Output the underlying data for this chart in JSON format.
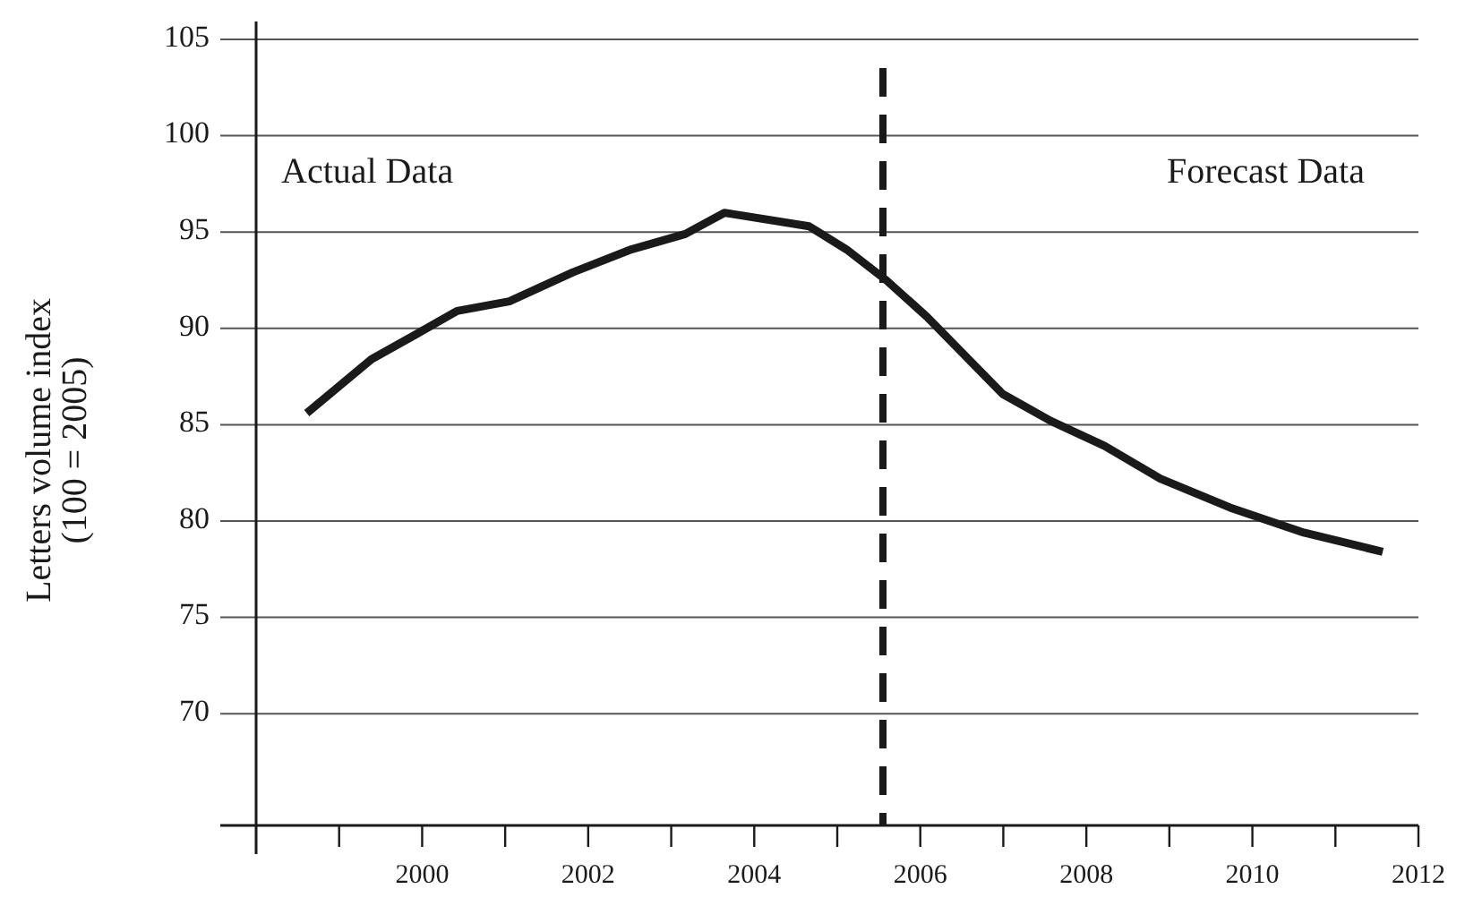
{
  "chart_data": {
    "type": "line",
    "ylabel": "Letters volume index\n(100 = 2005)",
    "x": [
      1998.61,
      1999.39,
      1999.93,
      2000.42,
      2001.05,
      2001.81,
      2002.52,
      2003.17,
      2003.64,
      2004.66,
      2005.11,
      2005.59,
      2006.08,
      2006.99,
      2007.57,
      2008.22,
      2008.89,
      2009.73,
      2010.62,
      2011.57
    ],
    "series": [
      {
        "color": "#1a1a1a",
        "values": [
          85.6,
          88.4,
          89.7,
          90.9,
          91.4,
          92.9,
          94.1,
          94.9,
          96.0,
          95.3,
          94.1,
          92.5,
          90.6,
          86.6,
          85.2,
          83.9,
          82.2,
          80.7,
          79.4,
          78.4
        ]
      }
    ],
    "xlim": [
      1998,
      2012
    ],
    "xticks": [
      {
        "value": 1999,
        "label": null
      },
      2000,
      {
        "value": 2001,
        "label": null
      },
      2002,
      {
        "value": 2003,
        "label": null
      },
      2004,
      {
        "value": 2005,
        "label": null
      },
      2006,
      {
        "value": 2007,
        "label": null
      },
      2008,
      {
        "value": 2009,
        "label": null
      },
      2010,
      {
        "value": 2011,
        "label": null
      },
      2012
    ],
    "ylim": [
      64.2,
      105
    ],
    "yticks": [
      70,
      75,
      80,
      85,
      90,
      95,
      100,
      105
    ],
    "grid": "y",
    "line_style": "solid",
    "marker": "none",
    "ref_lines": [
      {
        "axis": "x",
        "value": 2005.55,
        "line_style": "dashed",
        "color": "#1a1a1a"
      }
    ],
    "annotations": [
      "Actual Data",
      "Forecast Data"
    ]
  }
}
